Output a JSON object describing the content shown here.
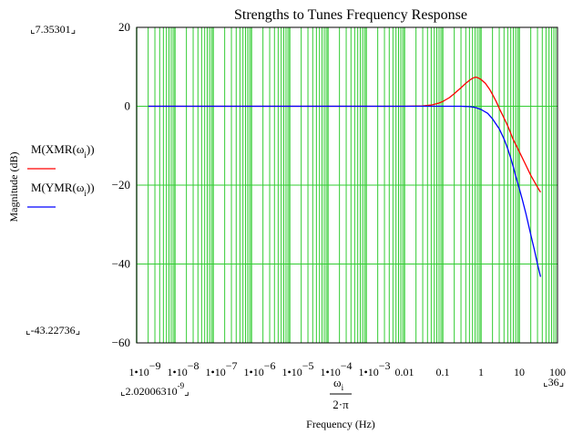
{
  "chart_data": {
    "type": "line",
    "title": "Strengths to Tunes Frequency Response",
    "xlabel": "Frequency (Hz)",
    "xlabel_expr": {
      "numerator": "ω",
      "numerator_sub": "i",
      "denominator": "2·π"
    },
    "ylabel": "Magnitude (dB)",
    "xscale": "log",
    "xlim": [
      1e-09,
      100
    ],
    "ylim": [
      -60,
      20
    ],
    "grid": true,
    "grid_color": "#33cc33",
    "x_ticks": [
      {
        "value": 1e-09,
        "mantissa": "1•10",
        "exp": "−9"
      },
      {
        "value": 1e-08,
        "mantissa": "1•10",
        "exp": "−8"
      },
      {
        "value": 1e-07,
        "mantissa": "1•10",
        "exp": "−7"
      },
      {
        "value": 1e-06,
        "mantissa": "1•10",
        "exp": "−6"
      },
      {
        "value": 1e-05,
        "mantissa": "1•10",
        "exp": "−5"
      },
      {
        "value": 0.0001,
        "mantissa": "1•10",
        "exp": "−4"
      },
      {
        "value": 0.001,
        "mantissa": "1•10",
        "exp": "−3"
      },
      {
        "value": 0.01,
        "mantissa": "0.01",
        "exp": ""
      },
      {
        "value": 0.1,
        "mantissa": "0.1",
        "exp": ""
      },
      {
        "value": 1,
        "mantissa": "1",
        "exp": ""
      },
      {
        "value": 10,
        "mantissa": "10",
        "exp": ""
      },
      {
        "value": 100,
        "mantissa": "100",
        "exp": ""
      }
    ],
    "y_ticks": [
      20,
      0,
      -20,
      -40,
      -60
    ],
    "y_ticks_text": [
      "20",
      "0",
      "−20",
      "−40",
      "−60"
    ],
    "range_markers": {
      "y_max": "7.35301",
      "y_min": "-43.22736",
      "x_min": "2.02006310",
      "x_min_exp": "-9",
      "x_max": "36"
    },
    "series": [
      {
        "name": "M(XMR(ω_i))",
        "legend_label": "M(XMR(ω",
        "legend_sub": "i",
        "legend_tail": "))",
        "color": "#ff0000",
        "x": [
          2.02e-09,
          1e-06,
          0.001,
          0.01,
          0.03,
          0.05,
          0.08,
          0.1,
          0.15,
          0.2,
          0.3,
          0.4,
          0.5,
          0.6,
          0.7,
          0.8,
          1.0,
          1.3,
          1.7,
          2.0,
          2.5,
          3.0,
          4.0,
          5.0,
          7.0,
          10,
          15,
          20,
          30,
          36
        ],
        "y": [
          0,
          0,
          0,
          0,
          0.1,
          0.3,
          0.8,
          1.2,
          2.2,
          3.2,
          4.7,
          5.8,
          6.6,
          7.1,
          7.35,
          7.3,
          6.8,
          5.8,
          4.2,
          3.0,
          1.2,
          -0.5,
          -3.0,
          -5.0,
          -8.5,
          -11.5,
          -15.0,
          -17.5,
          -20.5,
          -21.8
        ]
      },
      {
        "name": "M(YMR(ω_i))",
        "legend_label": "M(YMR(ω",
        "legend_sub": "i",
        "legend_tail": "))",
        "color": "#0000ff",
        "x": [
          2.02e-09,
          1e-06,
          0.001,
          0.01,
          0.1,
          0.2,
          0.3,
          0.5,
          0.7,
          1.0,
          1.5,
          2.0,
          3.0,
          4.0,
          5.0,
          6.0,
          7.0,
          8.0,
          10,
          12,
          15,
          20,
          25,
          30,
          36
        ],
        "y": [
          0,
          0,
          0,
          0,
          0,
          0,
          0,
          -0.1,
          -0.3,
          -0.8,
          -1.8,
          -3.2,
          -5.7,
          -8.3,
          -10.8,
          -13.2,
          -15.4,
          -17.6,
          -20.8,
          -23.6,
          -27.3,
          -32.5,
          -36.5,
          -40.0,
          -43.23
        ]
      }
    ]
  }
}
